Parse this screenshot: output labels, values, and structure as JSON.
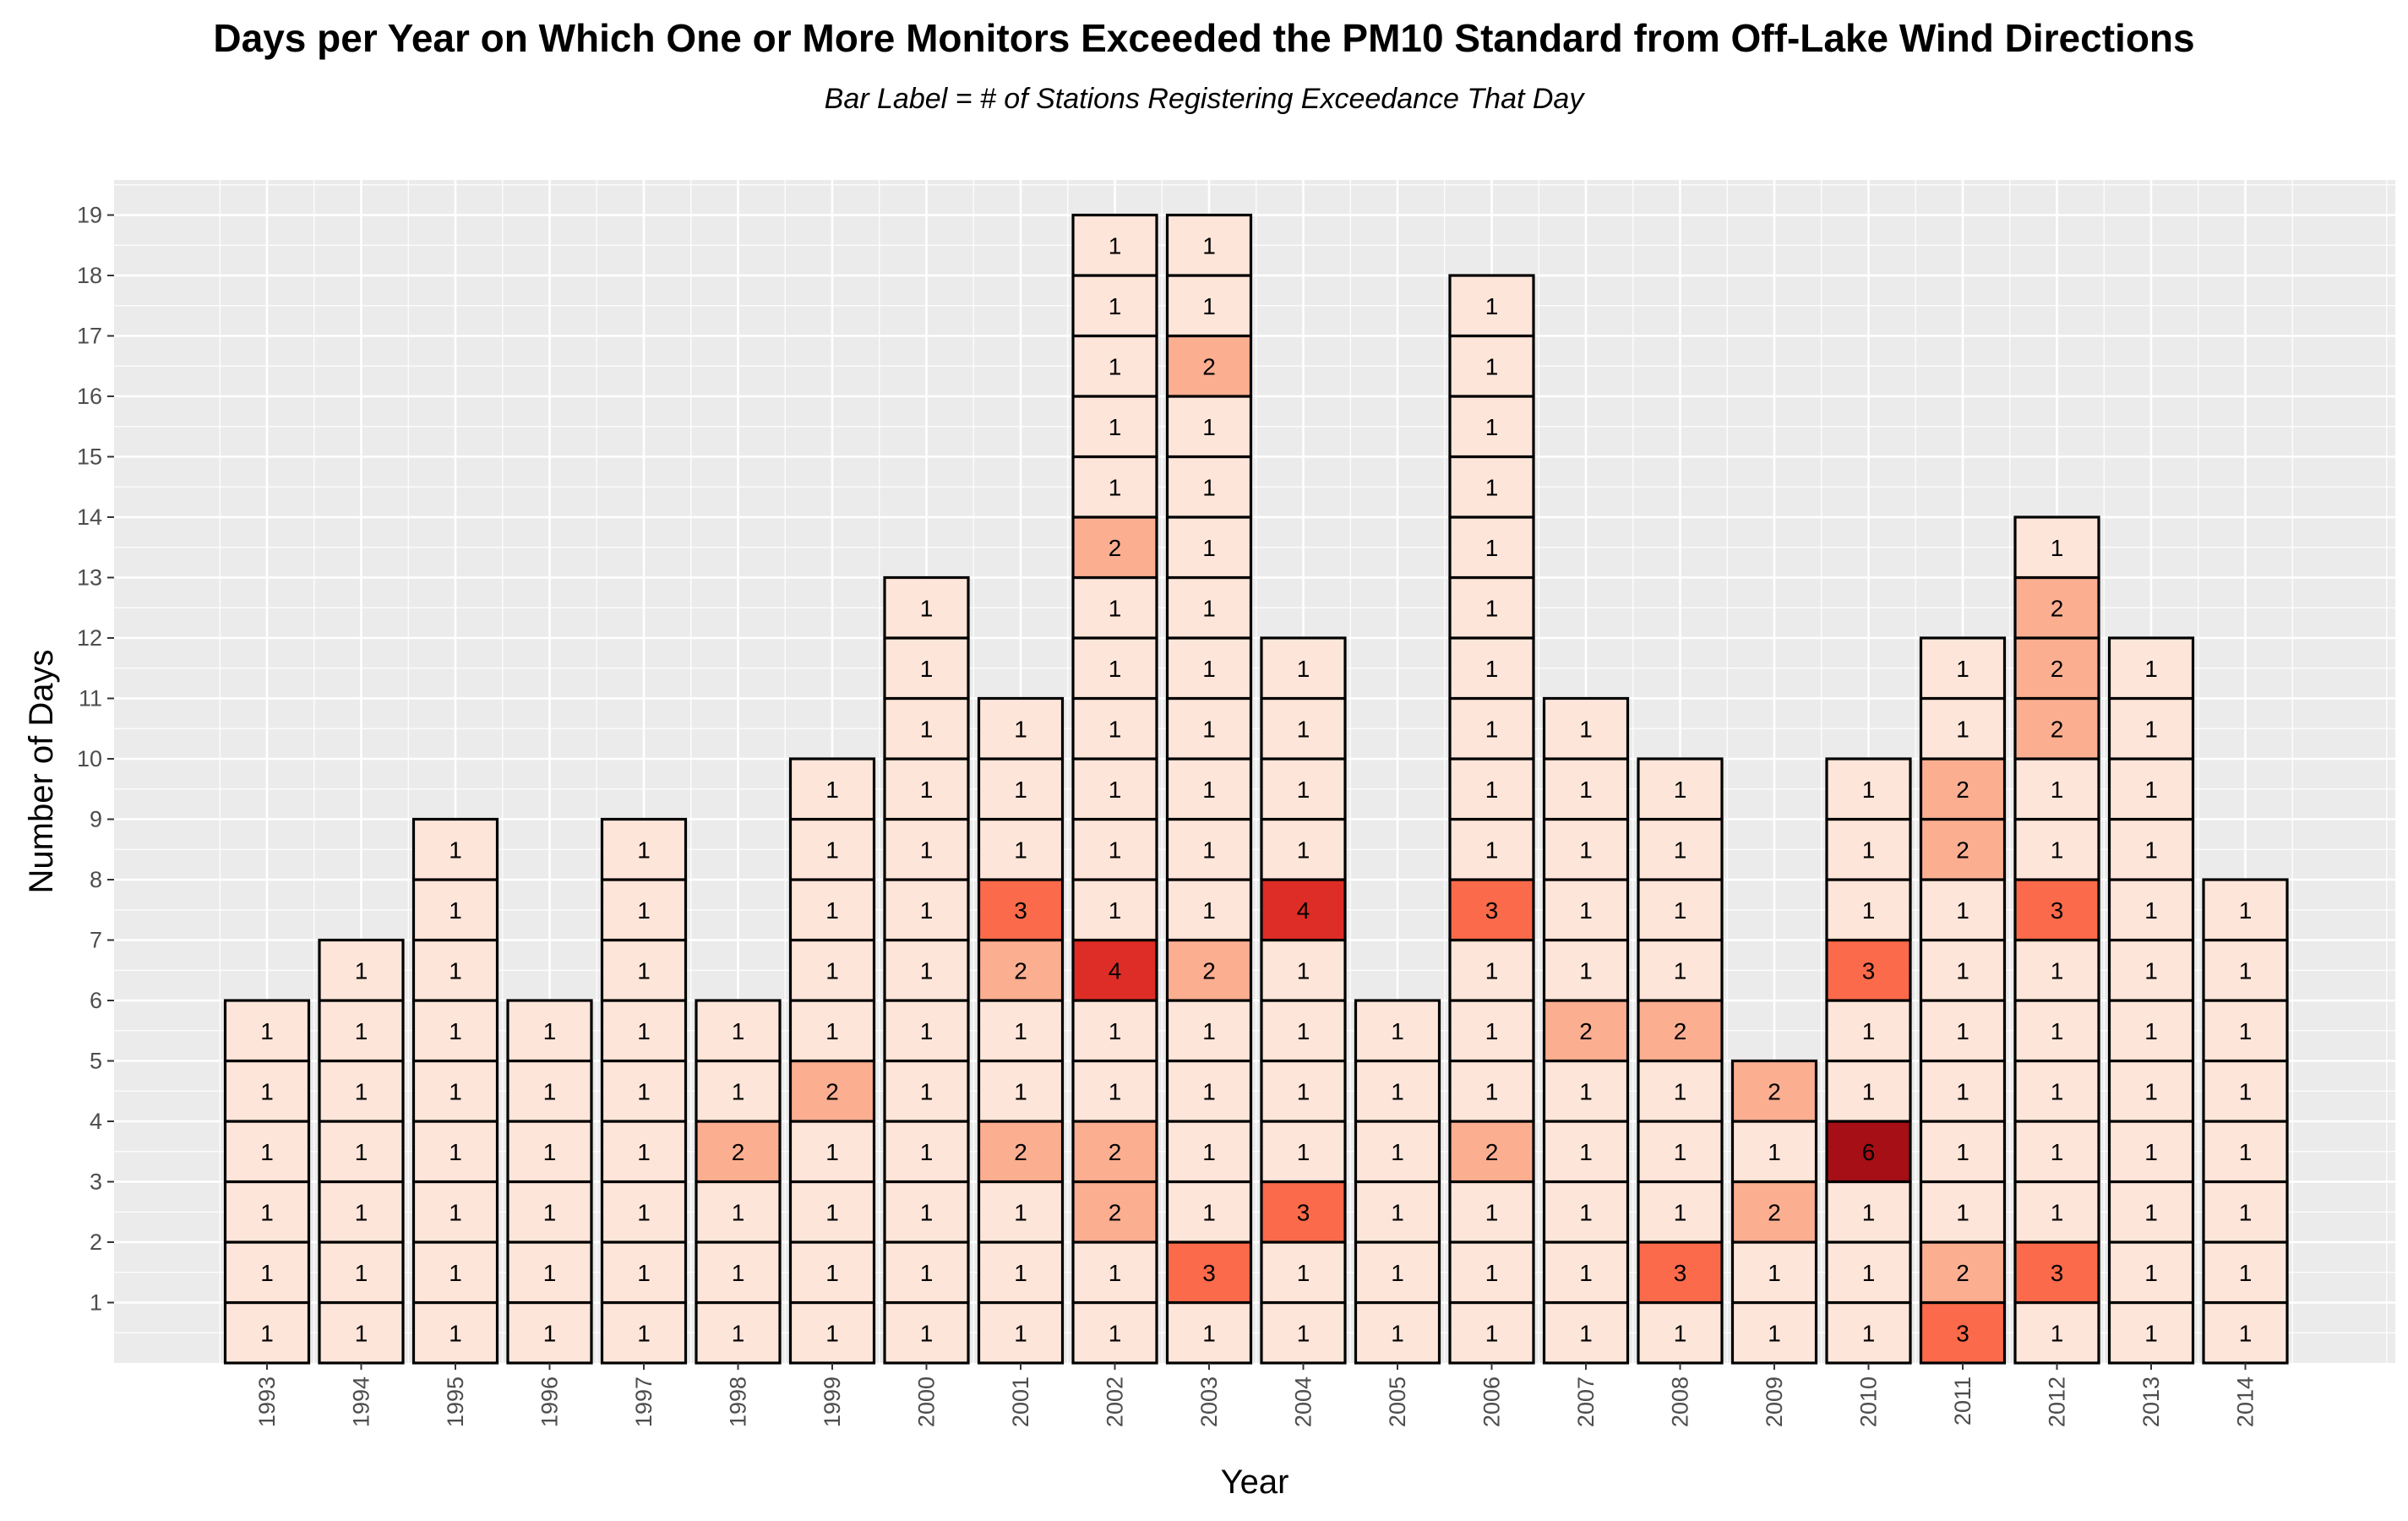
{
  "chart_data": {
    "type": "bar",
    "title": "Days per Year on Which One or More Monitors Exceeded the PM10 Standard from Off-Lake Wind Directions",
    "subtitle": "Bar Label = # of Stations Registering Exceedance That Day",
    "xlabel": "Year",
    "ylabel": "Number of Days",
    "ylim": [
      0,
      19
    ],
    "yticks": [
      1,
      2,
      3,
      4,
      5,
      6,
      7,
      8,
      9,
      10,
      11,
      12,
      13,
      14,
      15,
      16,
      17,
      18,
      19
    ],
    "grid": true,
    "categories": [
      "1993",
      "1994",
      "1995",
      "1996",
      "1997",
      "1998",
      "1999",
      "2000",
      "2001",
      "2002",
      "2003",
      "2004",
      "2005",
      "2006",
      "2007",
      "2008",
      "2009",
      "2010",
      "2011",
      "2012",
      "2013",
      "2014"
    ],
    "values": [
      6,
      7,
      9,
      6,
      9,
      6,
      10,
      13,
      11,
      19,
      19,
      12,
      6,
      18,
      11,
      10,
      5,
      10,
      12,
      14,
      12,
      8
    ],
    "stack_labels": [
      [
        1,
        1,
        1,
        1,
        1,
        1
      ],
      [
        1,
        1,
        1,
        1,
        1,
        1,
        1
      ],
      [
        1,
        1,
        1,
        1,
        1,
        1,
        1,
        1,
        1
      ],
      [
        1,
        1,
        1,
        1,
        1,
        1
      ],
      [
        1,
        1,
        1,
        1,
        1,
        1,
        1,
        1,
        1
      ],
      [
        1,
        1,
        1,
        2,
        1,
        1
      ],
      [
        1,
        1,
        1,
        1,
        2,
        1,
        1,
        1,
        1,
        1
      ],
      [
        1,
        1,
        1,
        1,
        1,
        1,
        1,
        1,
        1,
        1,
        1,
        1,
        1
      ],
      [
        1,
        1,
        1,
        2,
        1,
        1,
        2,
        3,
        1,
        1,
        1
      ],
      [
        1,
        1,
        2,
        2,
        1,
        1,
        4,
        1,
        1,
        1,
        1,
        1,
        1,
        2,
        1,
        1,
        1,
        1,
        1
      ],
      [
        1,
        3,
        1,
        1,
        1,
        1,
        2,
        1,
        1,
        1,
        1,
        1,
        1,
        1,
        1,
        1,
        2,
        1,
        1
      ],
      [
        1,
        1,
        3,
        1,
        1,
        1,
        1,
        4,
        1,
        1,
        1,
        1
      ],
      [
        1,
        1,
        1,
        1,
        1,
        1
      ],
      [
        1,
        1,
        1,
        2,
        1,
        1,
        1,
        3,
        1,
        1,
        1,
        1,
        1,
        1,
        1,
        1,
        1,
        1
      ],
      [
        1,
        1,
        1,
        1,
        1,
        2,
        1,
        1,
        1,
        1,
        1
      ],
      [
        1,
        3,
        1,
        1,
        1,
        2,
        1,
        1,
        1,
        1
      ],
      [
        1,
        1,
        2,
        1,
        2
      ],
      [
        1,
        1,
        1,
        6,
        1,
        1,
        3,
        1,
        1,
        1
      ],
      [
        3,
        2,
        1,
        1,
        1,
        1,
        1,
        1,
        2,
        2,
        1,
        1
      ],
      [
        1,
        3,
        1,
        1,
        1,
        1,
        1,
        3,
        1,
        1,
        2,
        2,
        2,
        1
      ],
      [
        1,
        1,
        1,
        1,
        1,
        1,
        1,
        1,
        1,
        1,
        1,
        1
      ],
      [
        1,
        1,
        1,
        1,
        1,
        1,
        1,
        1
      ]
    ],
    "fill_colors": {
      "1": "#fee5d9",
      "2": "#fcae91",
      "3": "#fb6a4a",
      "4": "#de2d26",
      "6": "#a50f15"
    }
  }
}
